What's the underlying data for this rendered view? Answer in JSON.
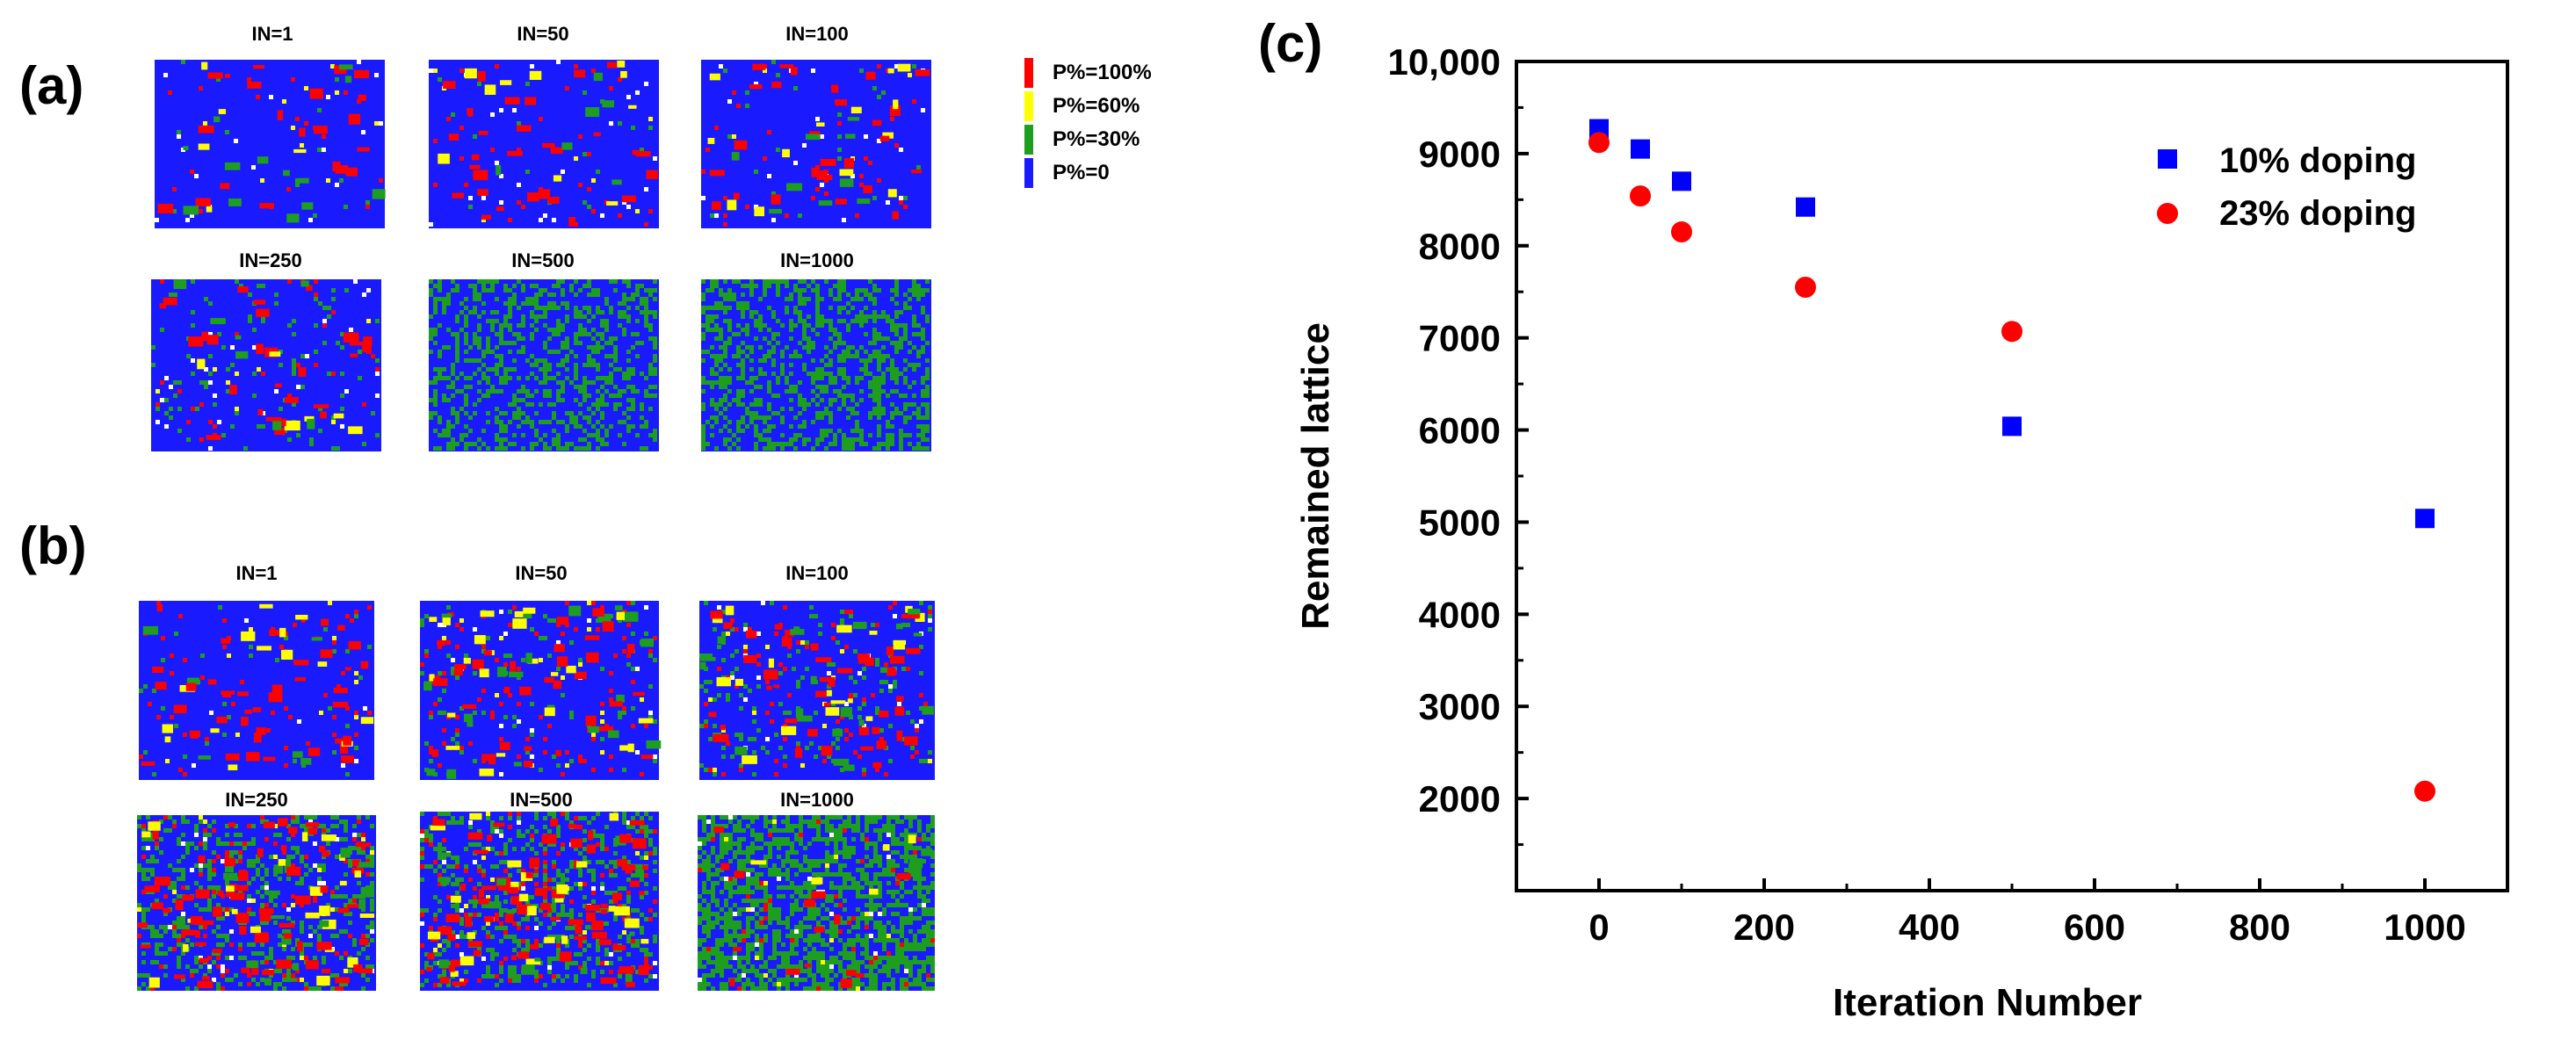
{
  "panels": {
    "a_label": "(a)",
    "b_label": "(b)",
    "c_label": "(c)"
  },
  "lattice_maps": {
    "a": [
      "IN=1",
      "IN=50",
      "IN=100",
      "IN=250",
      "IN=500",
      "IN=1000"
    ],
    "b": [
      "IN=1",
      "IN=50",
      "IN=100",
      "IN=250",
      "IN=500",
      "IN=1000"
    ]
  },
  "probability_legend": [
    {
      "label": "P%=100%",
      "color": "#ff0000"
    },
    {
      "label": "P%=60%",
      "color": "#ffff00"
    },
    {
      "label": "P%=30%",
      "color": "#1e9e1e"
    },
    {
      "label": "P%=0",
      "color": "#1a1aff"
    }
  ],
  "chart_data": {
    "type": "scatter",
    "title": "",
    "xlabel": "Iteration Number",
    "ylabel": "Remained lattice",
    "xlim": [
      -100,
      1100
    ],
    "ylim": [
      1000,
      10000
    ],
    "x_ticks": [
      0,
      200,
      400,
      600,
      800,
      1000
    ],
    "x_tick_labels": [
      "0",
      "200",
      "400",
      "600",
      "800",
      "1000"
    ],
    "y_ticks": [
      2000,
      3000,
      4000,
      5000,
      6000,
      7000,
      8000,
      9000,
      10000
    ],
    "y_tick_labels": [
      "2000",
      "3000",
      "4000",
      "5000",
      "6000",
      "7000",
      "8000",
      "9000",
      "10,000"
    ],
    "legend_position": "top-right",
    "grid": false,
    "series": [
      {
        "name": "10% doping",
        "marker": "square",
        "color": "#0000ff",
        "x": [
          0,
          50,
          100,
          250,
          500,
          1000
        ],
        "y": [
          9270,
          9050,
          8700,
          8420,
          6040,
          5040
        ]
      },
      {
        "name": "23% doping",
        "marker": "circle",
        "color": "#ff0000",
        "x": [
          0,
          50,
          100,
          250,
          500,
          1000
        ],
        "y": [
          9120,
          8540,
          8150,
          7550,
          7070,
          2080
        ]
      }
    ]
  }
}
